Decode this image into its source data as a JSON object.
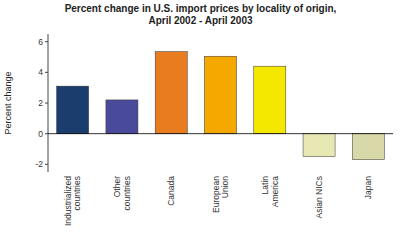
{
  "chart_data": {
    "type": "bar",
    "title": "Percent change in U.S. import prices by locality of origin,\nApril 2002 - April 2003",
    "ylabel": "Percent change",
    "categories": [
      "Industrialized\ncountries",
      "Other\ncountries",
      "Canada",
      "European\nUnion",
      "Latin\nAmerica",
      "Asian NICs",
      "Japan"
    ],
    "values": [
      3.1,
      2.2,
      5.35,
      5.05,
      4.4,
      -1.5,
      -1.7
    ],
    "colors": [
      "#1a3d6e",
      "#4a4a9a",
      "#e87c1e",
      "#f5a800",
      "#f5e800",
      "#e8e8b4",
      "#d8d8a8"
    ],
    "ylim": [
      -2.5,
      6.5
    ],
    "yticks": [
      -2,
      0,
      2,
      4,
      6
    ],
    "grid": false
  }
}
